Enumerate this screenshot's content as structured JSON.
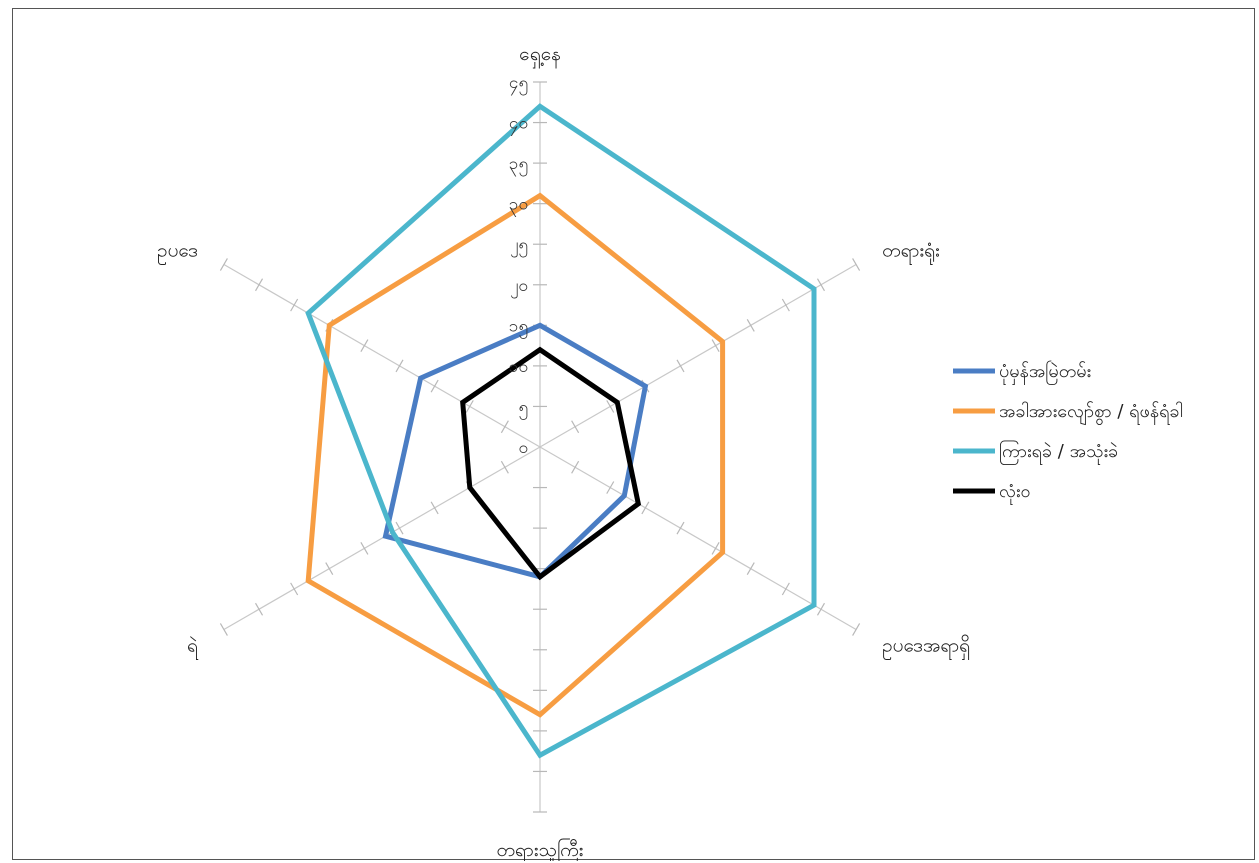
{
  "chart_data": {
    "type": "radar",
    "title": "",
    "categories": [
      "ရှေ့နေ",
      "တရားရုံး",
      "ဥပဒေအရာရှိ",
      "တရားသူကြီး",
      "ရဲ",
      "ဥပဒေ"
    ],
    "tick_labels": [
      "၀",
      "၅",
      "၁၀",
      "၁၅",
      "၂၀",
      "၂၅",
      "၃၀",
      "၃၅",
      "၄၀",
      "၄၅"
    ],
    "rlim": [
      0,
      45
    ],
    "grid": false,
    "legend_position": "right",
    "series": [
      {
        "name": "ပုံမှန်အမြဲတမ်း",
        "color": "#4a7dc4",
        "values": [
          15,
          15,
          12,
          16,
          22,
          17
        ]
      },
      {
        "name": "အခါအားလျော်စွာ / ရံဖန်ရံခါ",
        "color": "#f79d42",
        "values": [
          31,
          26,
          26,
          33,
          33,
          30
        ]
      },
      {
        "name": "ကြားရခဲ / အသုံးခဲ",
        "color": "#4bb6cc",
        "values": [
          42,
          39,
          39,
          38,
          21,
          33
        ]
      },
      {
        "name": "လုံးဝ",
        "color": "#000000",
        "values": [
          12,
          11,
          14,
          16,
          10,
          11
        ]
      }
    ]
  }
}
